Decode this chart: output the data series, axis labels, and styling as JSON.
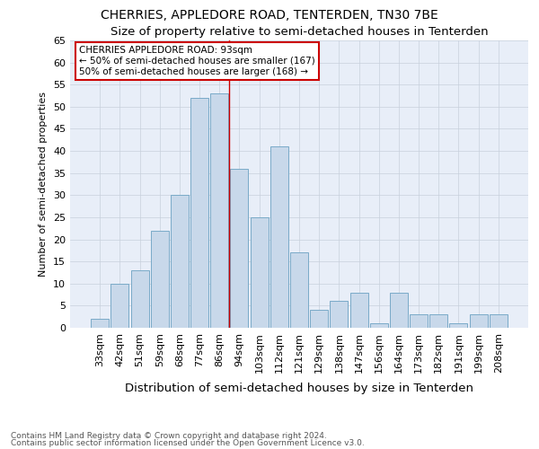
{
  "title1": "CHERRIES, APPLEDORE ROAD, TENTERDEN, TN30 7BE",
  "title2": "Size of property relative to semi-detached houses in Tenterden",
  "xlabel": "Distribution of semi-detached houses by size in Tenterden",
  "ylabel": "Number of semi-detached properties",
  "categories": [
    "33sqm",
    "42sqm",
    "51sqm",
    "59sqm",
    "68sqm",
    "77sqm",
    "86sqm",
    "94sqm",
    "103sqm",
    "112sqm",
    "121sqm",
    "129sqm",
    "138sqm",
    "147sqm",
    "156sqm",
    "164sqm",
    "173sqm",
    "182sqm",
    "191sqm",
    "199sqm",
    "208sqm"
  ],
  "values": [
    2,
    10,
    13,
    22,
    30,
    52,
    53,
    36,
    25,
    41,
    17,
    4,
    6,
    8,
    1,
    8,
    3,
    3,
    1,
    3,
    3
  ],
  "bar_color": "#c8d8ea",
  "bar_edge_color": "#7aaac8",
  "annotation_title": "CHERRIES APPLEDORE ROAD: 93sqm",
  "annotation_line1": "← 50% of semi-detached houses are smaller (167)",
  "annotation_line2": "50% of semi-detached houses are larger (168) →",
  "annotation_box_color": "#ffffff",
  "annotation_box_edge_color": "#cc0000",
  "marker_line_color": "#cc0000",
  "ylim": [
    0,
    65
  ],
  "yticks": [
    0,
    5,
    10,
    15,
    20,
    25,
    30,
    35,
    40,
    45,
    50,
    55,
    60,
    65
  ],
  "grid_color": "#c8d0dc",
  "background_color": "#e8eef8",
  "footer1": "Contains HM Land Registry data © Crown copyright and database right 2024.",
  "footer2": "Contains public sector information licensed under the Open Government Licence v3.0.",
  "title_fontsize": 10,
  "subtitle_fontsize": 9.5,
  "xlabel_fontsize": 9.5,
  "ylabel_fontsize": 8,
  "tick_fontsize": 8,
  "footer_fontsize": 6.5
}
